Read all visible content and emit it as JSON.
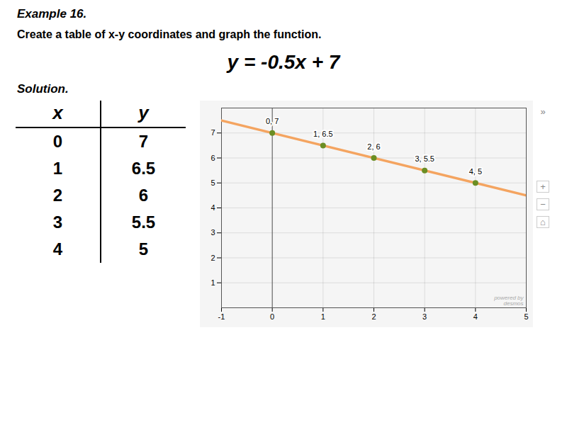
{
  "chart_data": {
    "type": "scatter",
    "title": "Create a table of x-y coordinates and graph the function.",
    "annotations": [
      "Example 16.",
      "y = -0.5x + 7",
      "Solution.",
      "»",
      "+",
      "−",
      "⌂",
      "powered by\ndesmos"
    ],
    "table_headers": [
      "x",
      "y"
    ],
    "series": [
      {
        "type": "line",
        "color": "#f4a460",
        "x": [
          -1,
          5
        ],
        "values": [
          7.5,
          4.5
        ]
      },
      {
        "type": "scatter",
        "color": "#6b8e23",
        "x": [
          0,
          1,
          2,
          3,
          4
        ],
        "values": [
          7,
          6.5,
          6,
          5.5,
          5
        ],
        "value_labels": [
          "0, 7",
          "1, 6.5",
          "2, 6",
          "3, 5.5",
          "4, 5"
        ],
        "data_labels": true
      }
    ],
    "xlim": [
      -1,
      5
    ],
    "xticks": [
      -1,
      0,
      1,
      2,
      3,
      4,
      5
    ],
    "ylim": [
      0,
      8
    ],
    "yticks": [
      1,
      2,
      3,
      4,
      5,
      6,
      7
    ],
    "grid": true
  }
}
